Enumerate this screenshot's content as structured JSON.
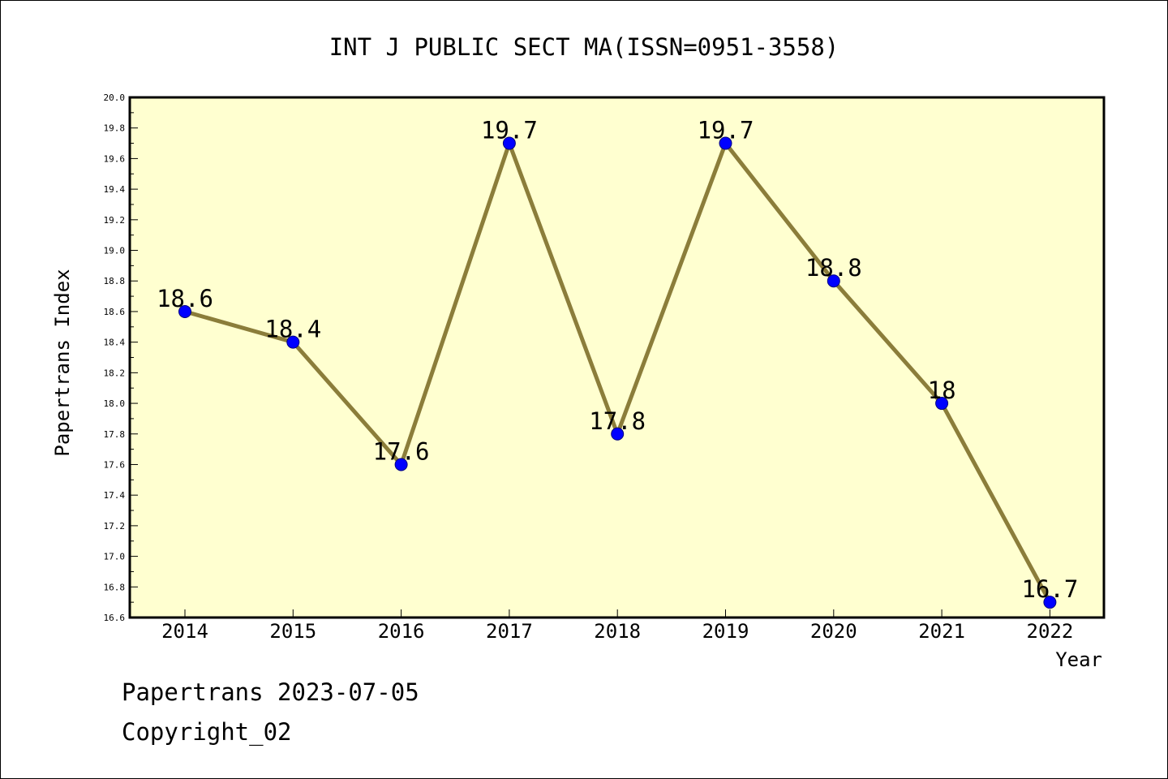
{
  "chart_data": {
    "type": "line",
    "title": "INT J PUBLIC SECT MA(ISSN=0951-3558)",
    "xlabel": "Year",
    "ylabel": "Papertrans Index",
    "x": [
      "2014",
      "2015",
      "2016",
      "2017",
      "2018",
      "2019",
      "2020",
      "2021",
      "2022"
    ],
    "values": [
      18.6,
      18.4,
      17.6,
      19.7,
      17.8,
      19.7,
      18.8,
      18.0,
      16.7
    ],
    "data_labels": [
      "18.6",
      "18.4",
      "17.6",
      "19.7",
      "17.8",
      "19.7",
      "18.8",
      "18",
      "16.7"
    ],
    "ylim": [
      16.6,
      20.0
    ],
    "yticks": [
      "16.6",
      "16.8",
      "17.0",
      "17.2",
      "17.4",
      "17.6",
      "17.8",
      "18.0",
      "18.2",
      "18.4",
      "18.6",
      "18.8",
      "19.0",
      "19.2",
      "19.4",
      "19.6",
      "19.8",
      "20.0"
    ],
    "grid": false,
    "colors": {
      "plot_background": "#ffffd0",
      "line": "#8b7d3a",
      "marker": "#0000ff",
      "marker_edge": "#000080"
    }
  },
  "footer": {
    "date_text": "Papertrans 2023-07-05",
    "copyright_text": "Copyright_02"
  }
}
